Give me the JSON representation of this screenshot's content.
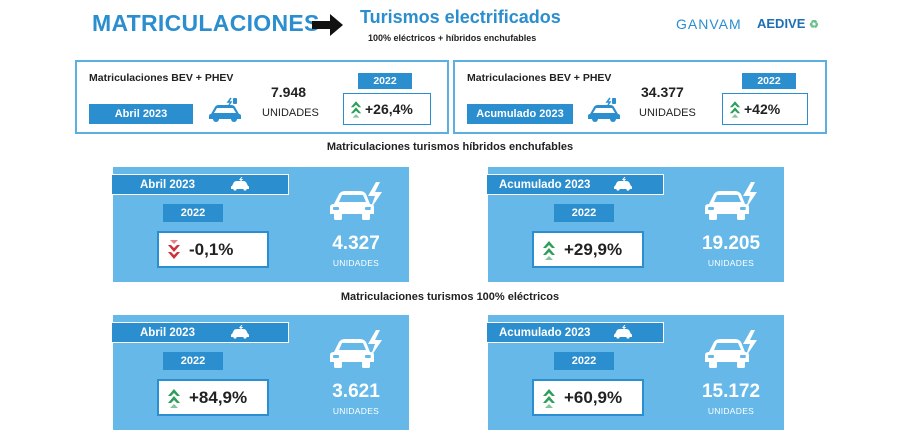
{
  "header": {
    "title": "MATRICULACIONES",
    "subtitle": "Turismos electrificados",
    "subtitle_note": "100% eléctricos + híbridos enchufables",
    "logo_ganvam": "GANVAM",
    "logo_aedive": "AEDIVE"
  },
  "top_left": {
    "label": "Matriculaciones BEV + PHEV",
    "period": "Abril 2023",
    "value": "7.948",
    "units": "UNIDADES",
    "year": "2022",
    "change": "+26,4%"
  },
  "top_right": {
    "label": "Matriculaciones BEV + PHEV",
    "period": "Acumulado 2023",
    "value": "34.377",
    "units": "UNIDADES",
    "year": "2022",
    "change": "+42%"
  },
  "phev": {
    "section_title": "Matriculaciones turismos híbridos enchufables",
    "month": {
      "period": "Abril 2023",
      "year": "2022",
      "change": "-0,1%",
      "value": "4.327",
      "units": "UNIDADES"
    },
    "ytd": {
      "period": "Acumulado 2023",
      "year": "2022",
      "change": "+29,9%",
      "value": "19.205",
      "units": "UNIDADES"
    }
  },
  "bev": {
    "section_title": "Matriculaciones turismos 100% eléctricos",
    "month": {
      "period": "Abril 2023",
      "year": "2022",
      "change": "+84,9%",
      "value": "3.621",
      "units": "UNIDADES"
    },
    "ytd": {
      "period": "Acumulado 2023",
      "year": "2022",
      "change": "+60,9%",
      "value": "15.172",
      "units": "UNIDADES"
    }
  },
  "colors": {
    "primary": "#2a8ecf",
    "card": "#65b8e8",
    "up": "#2e9e5b",
    "down": "#d0303a"
  },
  "icons": {
    "arrow": "right-arrow-icon",
    "car": "electric-car-icon",
    "up": "double-chevron-up-icon",
    "down": "double-chevron-down-icon"
  }
}
